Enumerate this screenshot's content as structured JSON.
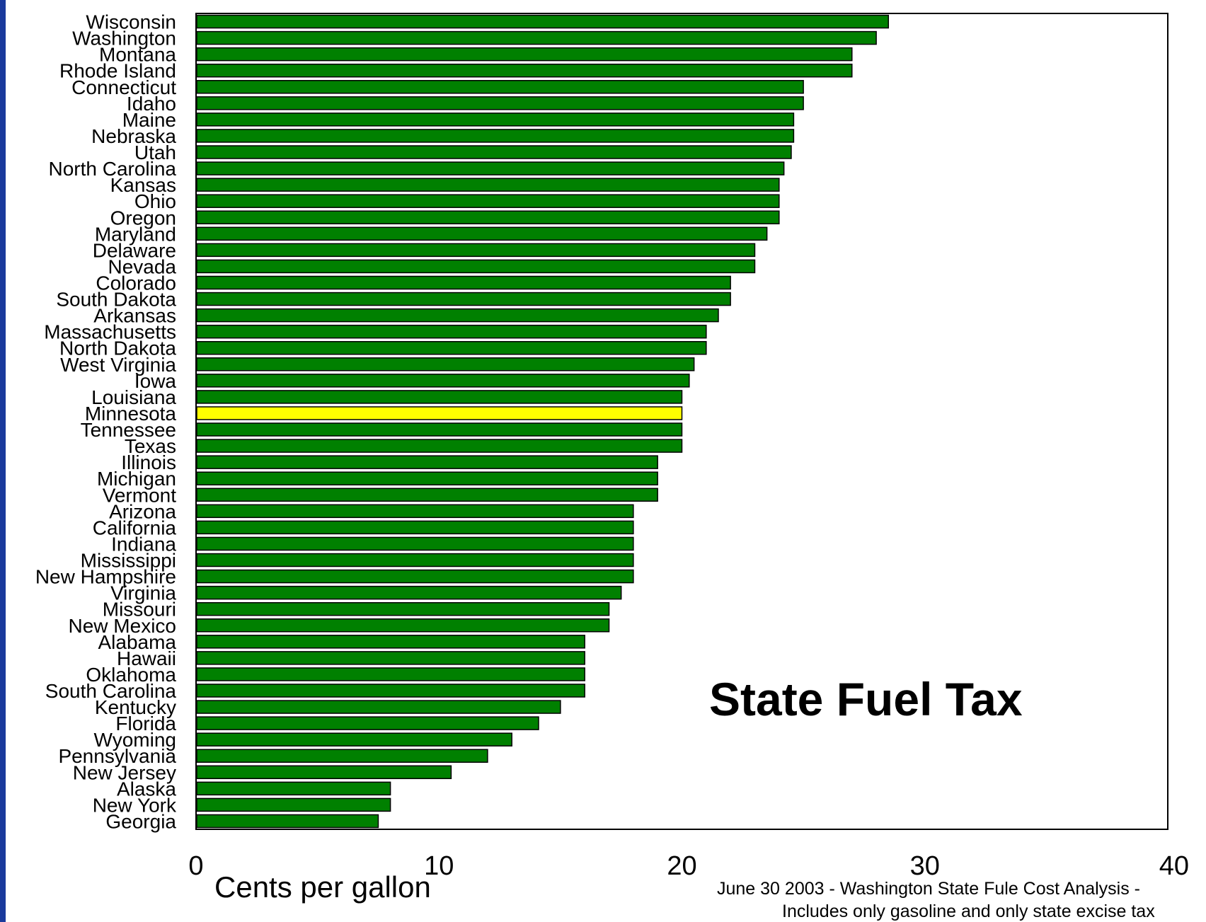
{
  "chart_data": {
    "type": "bar",
    "orientation": "horizontal",
    "title": "State Fuel Tax",
    "xlabel": "Cents per gallon",
    "ylabel": "",
    "xlim": [
      0,
      40
    ],
    "xticks": [
      "0",
      "10",
      "20",
      "30",
      "40"
    ],
    "grid": false,
    "highlight_category": "Minnesota",
    "colors": {
      "bar": "#008000",
      "highlight": "#ffff00",
      "outline": "#000000",
      "frame": "#1a3a9c"
    },
    "categories": [
      "Wisconsin",
      "Washington",
      "Montana",
      "Rhode Island",
      "Connecticut",
      "Idaho",
      "Maine",
      "Nebraska",
      "Utah",
      "North Carolina",
      "Kansas",
      "Ohio",
      "Oregon",
      "Maryland",
      "Delaware",
      "Nevada",
      "Colorado",
      "South Dakota",
      "Arkansas",
      "Massachusetts",
      "North Dakota",
      "West Virginia",
      "Iowa",
      "Louisiana",
      "Minnesota",
      "Tennessee",
      "Texas",
      "Illinois",
      "Michigan",
      "Vermont",
      "Arizona",
      "California",
      "Indiana",
      "Mississippi",
      "New Hampshire",
      "Virginia",
      "Missouri",
      "New Mexico",
      "Alabama",
      "Hawaii",
      "Oklahoma",
      "South Carolina",
      "Kentucky",
      "Florida",
      "Wyoming",
      "Pennsylvania",
      "New Jersey",
      "Alaska",
      "New York",
      "Georgia"
    ],
    "values": [
      28.5,
      28,
      27,
      27,
      25,
      25,
      24.6,
      24.6,
      24.5,
      24.2,
      24,
      24,
      24,
      23.5,
      23,
      23,
      22,
      22,
      21.5,
      21,
      21,
      20.5,
      20.3,
      20,
      20,
      20,
      20,
      19,
      19,
      19,
      18,
      18,
      18,
      18,
      18,
      17.5,
      17,
      17,
      16,
      16,
      16,
      16,
      15,
      14.1,
      13,
      12,
      10.5,
      8,
      8,
      7.5
    ]
  },
  "footnote": {
    "line1": "June 30 2003 - Washington State Fule Cost Analysis -",
    "line2": "Includes only gasoline and only state excise tax"
  }
}
